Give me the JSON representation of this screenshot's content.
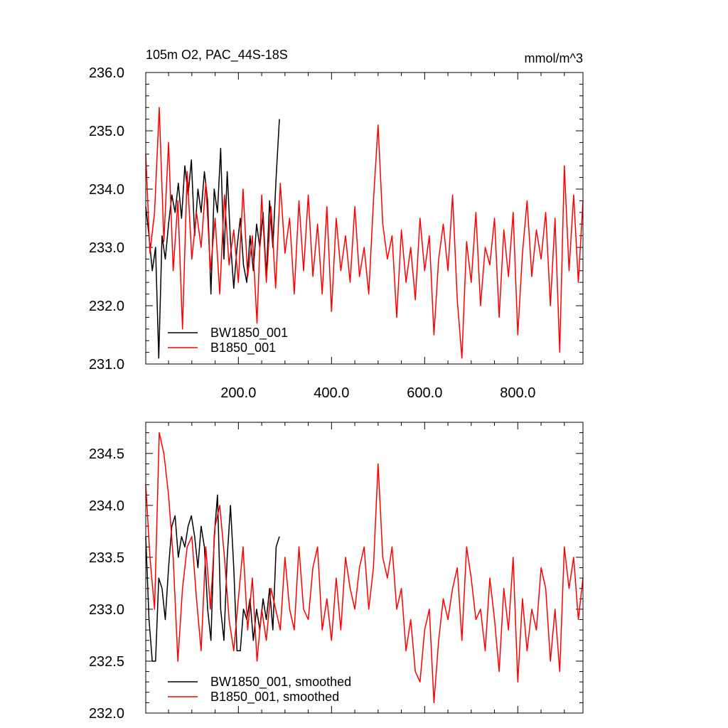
{
  "chart_data": [
    {
      "type": "line",
      "title": "105m O2, PAC_44S-18S",
      "units": "mmol/m^3",
      "xlim": [
        1,
        940
      ],
      "ylim": [
        231.0,
        236.0
      ],
      "xticks": [
        200,
        400,
        600,
        800
      ],
      "xtick_labels": [
        "200.0",
        "400.0",
        "600.0",
        "800.0"
      ],
      "yticks": [
        231.0,
        232.0,
        233.0,
        234.0,
        235.0,
        236.0
      ],
      "ytick_labels": [
        "231.0",
        "232.0",
        "233.0",
        "234.0",
        "235.0",
        "236.0"
      ],
      "legend_position": "bottom-left",
      "series": [
        {
          "name": "BW1850_001",
          "color": "#000000",
          "x": [
            1,
            8,
            15,
            22,
            29,
            36,
            43,
            50,
            57,
            64,
            71,
            78,
            85,
            92,
            99,
            106,
            113,
            120,
            127,
            134,
            141,
            148,
            155,
            162,
            169,
            176,
            183,
            190,
            197,
            204,
            211,
            218,
            225,
            232,
            239,
            246,
            253,
            260,
            267,
            274,
            281,
            288
          ],
          "y": [
            233.7,
            233.2,
            232.6,
            233.0,
            231.1,
            233.2,
            232.8,
            233.4,
            233.9,
            233.6,
            234.1,
            233.5,
            234.4,
            233.9,
            234.5,
            233.2,
            234.0,
            233.6,
            234.3,
            233.8,
            232.2,
            234.0,
            233.6,
            234.7,
            232.8,
            234.3,
            233.1,
            232.3,
            233.0,
            233.5,
            232.7,
            232.4,
            233.2,
            232.6,
            233.4,
            233.0,
            233.6,
            232.5,
            233.8,
            233.0,
            234.2,
            235.2
          ]
        },
        {
          "name": "B1850_001",
          "color": "#ff0000",
          "x": [
            1,
            10,
            20,
            30,
            40,
            50,
            60,
            70,
            80,
            90,
            100,
            110,
            120,
            130,
            140,
            150,
            160,
            170,
            180,
            190,
            200,
            210,
            220,
            230,
            240,
            250,
            260,
            270,
            280,
            290,
            300,
            310,
            320,
            330,
            340,
            350,
            360,
            370,
            380,
            390,
            400,
            410,
            420,
            430,
            440,
            450,
            460,
            470,
            480,
            490,
            500,
            510,
            520,
            530,
            540,
            550,
            560,
            570,
            580,
            590,
            600,
            610,
            620,
            630,
            640,
            650,
            660,
            670,
            680,
            690,
            700,
            710,
            720,
            730,
            740,
            750,
            760,
            770,
            780,
            790,
            800,
            810,
            820,
            830,
            840,
            850,
            860,
            870,
            880,
            890,
            900,
            910,
            920,
            930,
            940
          ],
          "y": [
            234.6,
            232.9,
            233.6,
            235.4,
            233.1,
            234.8,
            232.6,
            233.8,
            231.6,
            234.3,
            232.8,
            233.6,
            233.0,
            234.1,
            232.6,
            233.5,
            232.2,
            233.9,
            232.7,
            233.3,
            232.4,
            234.0,
            232.5,
            233.2,
            231.7,
            233.9,
            232.4,
            233.7,
            232.3,
            234.1,
            232.9,
            233.5,
            232.2,
            233.8,
            232.6,
            233.9,
            232.5,
            233.4,
            232.2,
            233.7,
            231.9,
            233.5,
            232.6,
            233.2,
            232.4,
            233.7,
            232.5,
            233.0,
            232.2,
            233.8,
            235.1,
            233.4,
            232.8,
            233.2,
            231.8,
            233.3,
            232.4,
            233.0,
            232.1,
            233.5,
            232.6,
            233.2,
            231.5,
            232.8,
            233.4,
            232.6,
            233.9,
            232.1,
            231.1,
            233.1,
            232.4,
            233.6,
            232.0,
            233.0,
            232.7,
            233.5,
            231.8,
            233.3,
            232.5,
            233.6,
            231.5,
            232.9,
            233.8,
            232.5,
            233.3,
            232.8,
            233.6,
            232.0,
            233.5,
            231.2,
            234.4,
            232.6,
            233.9,
            232.4,
            233.8
          ]
        }
      ]
    },
    {
      "type": "line",
      "xlim": [
        1,
        940
      ],
      "ylim": [
        232.0,
        234.8
      ],
      "xticks": [
        200,
        400,
        600,
        800
      ],
      "yticks": [
        232.0,
        232.5,
        233.0,
        233.5,
        234.0,
        234.5
      ],
      "ytick_labels": [
        "232.0",
        "232.5",
        "233.0",
        "233.5",
        "234.0",
        "234.5"
      ],
      "legend_position": "bottom-left",
      "series": [
        {
          "name": "BW1850_001, smoothed",
          "color": "#000000",
          "x": [
            1,
            8,
            15,
            22,
            29,
            36,
            43,
            50,
            57,
            64,
            71,
            78,
            85,
            92,
            99,
            106,
            113,
            120,
            127,
            134,
            141,
            148,
            155,
            162,
            169,
            176,
            183,
            190,
            197,
            204,
            211,
            218,
            225,
            232,
            239,
            246,
            253,
            260,
            267,
            274,
            281,
            288
          ],
          "y": [
            233.7,
            232.9,
            232.5,
            232.5,
            233.3,
            233.2,
            232.9,
            233.4,
            233.8,
            233.9,
            233.5,
            233.7,
            233.6,
            233.8,
            233.9,
            233.7,
            233.4,
            233.8,
            233.6,
            233.0,
            232.7,
            233.7,
            234.1,
            233.0,
            232.7,
            233.5,
            234.0,
            233.4,
            232.6,
            232.6,
            233.0,
            232.9,
            233.1,
            232.7,
            233.0,
            232.8,
            233.1,
            232.9,
            233.2,
            232.8,
            233.6,
            233.7
          ]
        },
        {
          "name": "B1850_001, smoothed",
          "color": "#ff0000",
          "x": [
            1,
            10,
            20,
            30,
            40,
            50,
            60,
            70,
            80,
            90,
            100,
            110,
            120,
            130,
            140,
            150,
            160,
            170,
            180,
            190,
            200,
            210,
            220,
            230,
            240,
            250,
            260,
            270,
            280,
            290,
            300,
            310,
            320,
            330,
            340,
            350,
            360,
            370,
            380,
            390,
            400,
            410,
            420,
            430,
            440,
            450,
            460,
            470,
            480,
            490,
            500,
            510,
            520,
            530,
            540,
            550,
            560,
            570,
            580,
            590,
            600,
            610,
            620,
            630,
            640,
            650,
            660,
            670,
            680,
            690,
            700,
            710,
            720,
            730,
            740,
            750,
            760,
            770,
            780,
            790,
            800,
            810,
            820,
            830,
            840,
            850,
            860,
            870,
            880,
            890,
            900,
            910,
            920,
            930,
            940
          ],
          "y": [
            234.2,
            233.5,
            233.0,
            234.7,
            234.5,
            234.1,
            233.5,
            232.5,
            233.2,
            233.6,
            233.7,
            233.1,
            232.6,
            233.6,
            233.0,
            233.8,
            234.0,
            233.5,
            232.9,
            232.6,
            233.1,
            233.6,
            232.8,
            233.3,
            232.5,
            233.0,
            232.7,
            233.2,
            233.0,
            232.8,
            233.5,
            233.0,
            232.8,
            233.6,
            233.0,
            232.9,
            233.4,
            233.6,
            232.8,
            233.1,
            232.7,
            233.3,
            232.8,
            233.5,
            233.2,
            233.0,
            233.4,
            233.6,
            233.0,
            233.4,
            234.4,
            233.5,
            233.3,
            233.6,
            233.0,
            233.2,
            232.6,
            232.9,
            232.4,
            232.3,
            232.8,
            233.0,
            232.1,
            232.7,
            233.1,
            232.9,
            233.2,
            233.4,
            232.7,
            233.6,
            233.3,
            232.9,
            233.0,
            232.6,
            233.3,
            232.9,
            232.4,
            233.2,
            232.8,
            233.5,
            232.3,
            233.1,
            232.6,
            233.0,
            232.8,
            233.4,
            233.2,
            232.5,
            233.0,
            232.4,
            233.6,
            233.2,
            233.5,
            232.9,
            233.3
          ]
        }
      ]
    }
  ]
}
